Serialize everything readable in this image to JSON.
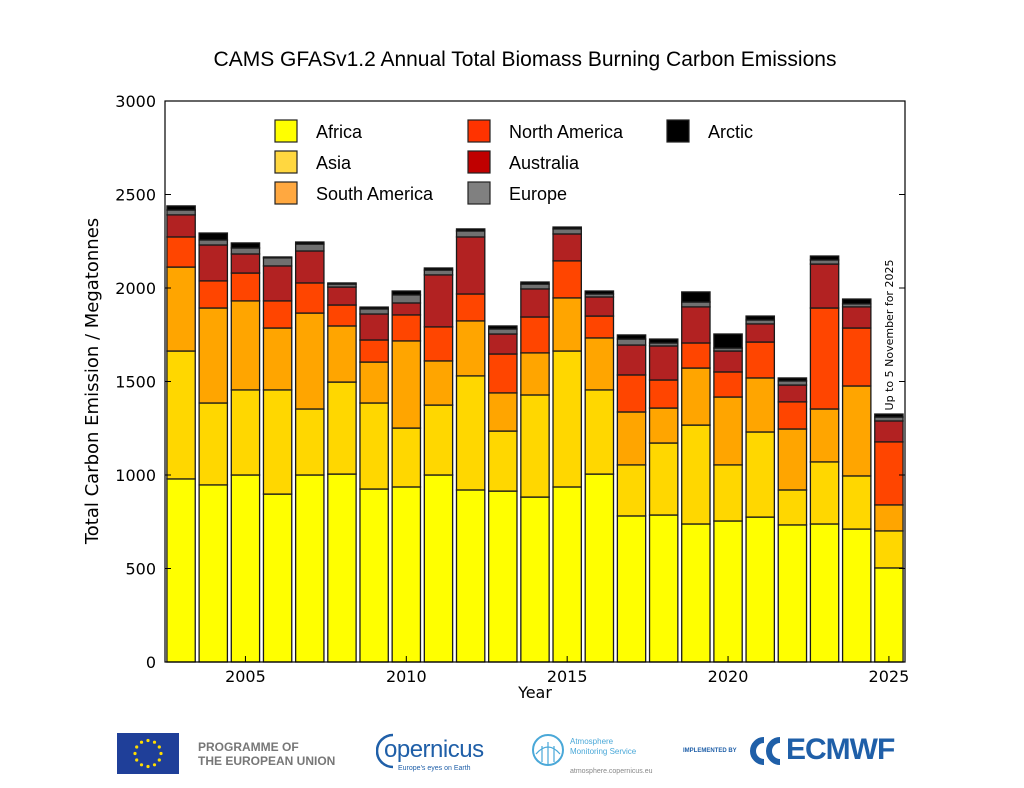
{
  "chart_data": {
    "type": "bar",
    "stacked": true,
    "title": "CAMS GFASv1.2 Annual Total Biomass Burning Carbon Emissions",
    "xlabel": "Year",
    "ylabel": "Total Carbon Emission / Megatonnes",
    "ylim": [
      0,
      3000
    ],
    "yticks": [
      "0",
      "500",
      "1000",
      "1500",
      "2000",
      "2500",
      "3000"
    ],
    "xticks": [
      "2005",
      "2010",
      "2015",
      "2020",
      "2025"
    ],
    "annotation": "Up to 5 November for 2025",
    "legend_position": "top-center",
    "categories": [
      2003,
      2004,
      2005,
      2006,
      2007,
      2008,
      2009,
      2010,
      2011,
      2012,
      2013,
      2014,
      2015,
      2016,
      2017,
      2018,
      2019,
      2020,
      2021,
      2022,
      2023,
      2024,
      2025
    ],
    "series": [
      {
        "name": "Africa",
        "color": "#ffff00",
        "values": [
          979,
          947,
          1000,
          898,
          1000,
          1005,
          925,
          936,
          1000,
          920,
          914,
          882,
          936,
          1005,
          781,
          786,
          738,
          754,
          775,
          733,
          738,
          711,
          503
        ]
      },
      {
        "name": "Asia",
        "color": "#ffd700",
        "values": [
          684,
          438,
          455,
          557,
          353,
          492,
          460,
          315,
          374,
          610,
          321,
          546,
          727,
          450,
          273,
          385,
          529,
          300,
          455,
          187,
          332,
          284,
          198
        ]
      },
      {
        "name": "South America",
        "color": "#ffa500",
        "values": [
          449,
          508,
          476,
          331,
          513,
          300,
          219,
          466,
          236,
          294,
          204,
          225,
          284,
          278,
          283,
          187,
          305,
          363,
          289,
          326,
          283,
          481,
          139
        ]
      },
      {
        "name": "North America",
        "color": "#ff4500",
        "values": [
          161,
          145,
          149,
          145,
          161,
          112,
          118,
          139,
          182,
          144,
          208,
          192,
          198,
          117,
          198,
          150,
          134,
          134,
          192,
          145,
          540,
          310,
          337
        ]
      },
      {
        "name": "Australia",
        "color": "#b22222",
        "values": [
          118,
          192,
          102,
          187,
          171,
          96,
          139,
          64,
          278,
          305,
          107,
          150,
          144,
          102,
          160,
          182,
          193,
          112,
          97,
          90,
          235,
          113,
          112
        ]
      },
      {
        "name": "Europe",
        "color": "#707070",
        "values": [
          26,
          27,
          32,
          43,
          37,
          16,
          27,
          43,
          26,
          32,
          27,
          26,
          27,
          16,
          32,
          16,
          26,
          16,
          21,
          22,
          22,
          16,
          21
        ]
      },
      {
        "name": "Arctic",
        "color": "#000000",
        "values": [
          22,
          37,
          27,
          5,
          11,
          6,
          10,
          21,
          11,
          11,
          16,
          11,
          10,
          16,
          22,
          21,
          54,
          75,
          21,
          16,
          21,
          26,
          16
        ]
      }
    ],
    "legend_order": [
      {
        "name": "Africa",
        "color": "#ffff00"
      },
      {
        "name": "Asia",
        "color": "#ffd740"
      },
      {
        "name": "South America",
        "color": "#ffa840"
      },
      {
        "name": "North America",
        "color": "#ff3300"
      },
      {
        "name": "Australia",
        "color": "#c00000"
      },
      {
        "name": "Europe",
        "color": "#808080"
      },
      {
        "name": "Arctic",
        "color": "#000000"
      }
    ]
  },
  "footer": {
    "eu_line1": "PROGRAMME OF",
    "eu_line2": "THE EUROPEAN UNION",
    "copernicus": "opernicus",
    "copernicus_tagline": "Europe's eyes on Earth",
    "cams_line1": "Atmosphere",
    "cams_line2": "Monitoring Service",
    "cams_url": "atmosphere.copernicus.eu",
    "implemented_by": "IMPLEMENTED BY",
    "ecmwf": "ECMWF"
  }
}
